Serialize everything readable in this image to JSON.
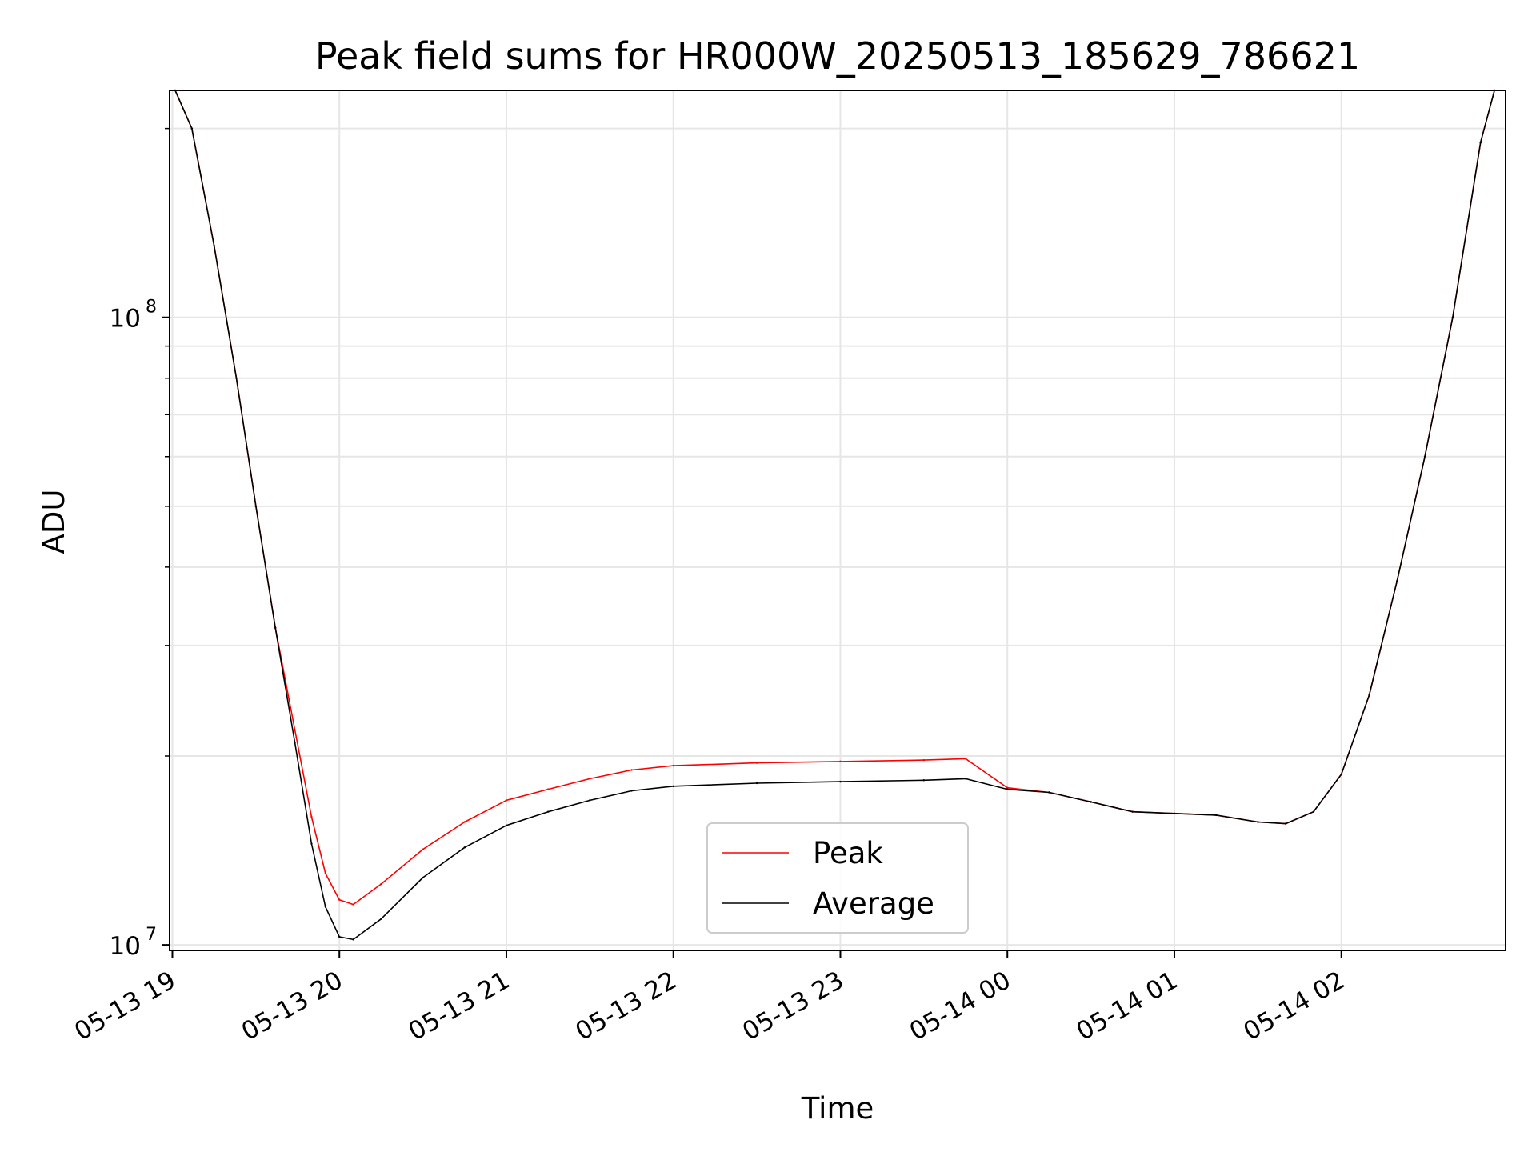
{
  "chart_data": {
    "type": "line",
    "title": "Peak field sums for HR000W_20250513_185629_786621",
    "xlabel": "Time",
    "ylabel": "ADU",
    "yscale": "log",
    "xlim": [
      "2025-05-13 18:59",
      "2025-05-14 02:59"
    ],
    "ylim": [
      9800000,
      230000000
    ],
    "grid": true,
    "legend_position": "lower center",
    "x_ticks": [
      "05-13 19",
      "05-13 20",
      "05-13 21",
      "05-13 22",
      "05-13 23",
      "05-14 00",
      "05-14 01",
      "05-14 02"
    ],
    "y_ticks": [
      {
        "label_base": "10",
        "label_exp": "7",
        "value": 10000000
      },
      {
        "label_base": "10",
        "label_exp": "8",
        "value": 100000000
      }
    ],
    "x": [
      "2025-05-13 19:01",
      "2025-05-13 19:07",
      "2025-05-13 19:15",
      "2025-05-13 19:23",
      "2025-05-13 19:30",
      "2025-05-13 19:37",
      "2025-05-13 19:44",
      "2025-05-13 19:50",
      "2025-05-13 19:55",
      "2025-05-13 20:00",
      "2025-05-13 20:05",
      "2025-05-13 20:15",
      "2025-05-13 20:30",
      "2025-05-13 20:45",
      "2025-05-13 21:00",
      "2025-05-13 21:15",
      "2025-05-13 21:30",
      "2025-05-13 21:45",
      "2025-05-13 22:00",
      "2025-05-13 22:30",
      "2025-05-13 23:00",
      "2025-05-13 23:30",
      "2025-05-13 23:45",
      "2025-05-14 00:00",
      "2025-05-14 00:15",
      "2025-05-14 00:30",
      "2025-05-14 00:45",
      "2025-05-14 01:00",
      "2025-05-14 01:15",
      "2025-05-14 01:30",
      "2025-05-14 01:40",
      "2025-05-14 01:50",
      "2025-05-14 02:00",
      "2025-05-14 02:10",
      "2025-05-14 02:20",
      "2025-05-14 02:30",
      "2025-05-14 02:40",
      "2025-05-14 02:50",
      "2025-05-14 02:55"
    ],
    "series": [
      {
        "name": "Peak",
        "color": "#ff0000",
        "values": [
          230000000,
          200000000,
          130000000,
          80000000,
          50000000,
          32000000,
          22000000,
          16000000,
          13000000,
          11800000,
          11600000,
          12500000,
          14200000,
          15700000,
          17000000,
          17700000,
          18400000,
          19000000,
          19300000,
          19500000,
          19600000,
          19700000,
          19800000,
          17800000,
          17500000,
          16900000,
          16300000,
          16200000,
          16100000,
          15700000,
          15600000,
          16300000,
          18700000,
          25000000,
          38000000,
          60000000,
          100000000,
          190000000,
          230000000
        ]
      },
      {
        "name": "Average",
        "color": "#000000",
        "values": [
          230000000,
          200000000,
          130000000,
          80000000,
          50000000,
          32000000,
          21000000,
          14500000,
          11500000,
          10300000,
          10200000,
          11000000,
          12800000,
          14300000,
          15500000,
          16300000,
          17000000,
          17600000,
          17900000,
          18100000,
          18200000,
          18300000,
          18400000,
          17700000,
          17500000,
          16900000,
          16300000,
          16200000,
          16100000,
          15700000,
          15600000,
          16300000,
          18700000,
          25000000,
          38000000,
          60000000,
          100000000,
          190000000,
          230000000
        ]
      }
    ]
  }
}
